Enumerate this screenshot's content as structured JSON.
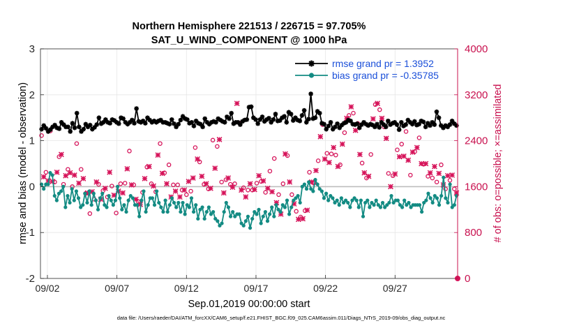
{
  "chart_data": {
    "type": "line",
    "title": "Northern Hemisphere 221513 / 226715 = 97.705%",
    "subtitle": "SAT_U_WIND_COMPONENT @ 1000 hPa",
    "xlabel": "Sep.01,2019 00:00:00 start",
    "ylabel_left": "rmse and bias (model - observation)",
    "ylabel_right": "# of obs: o=possible; ×=assimilated",
    "footnote": "data file: /Users/raeder/DAI/ATM_forcXX/CAM6_setup/f.e21.FHIST_BGC.f09_025.CAM6assim.011/Diags_NTrS_2019-09/obs_diag_output.nc",
    "xlim_days": [
      0.5,
      30.5
    ],
    "ylim_left": [
      -2,
      3
    ],
    "ylim_right": [
      0,
      4000
    ],
    "grid": true,
    "x_ticks": [
      {
        "day": 1.0,
        "label": "09/02"
      },
      {
        "day": 6.0,
        "label": "09/07"
      },
      {
        "day": 11.0,
        "label": "09/12"
      },
      {
        "day": 16.0,
        "label": "09/17"
      },
      {
        "day": 21.0,
        "label": "09/22"
      },
      {
        "day": 26.0,
        "label": "09/27"
      }
    ],
    "y_ticks_left": [
      -2,
      -1,
      0,
      1,
      2,
      3
    ],
    "y_ticks_right": [
      0,
      800,
      1600,
      2400,
      3200,
      4000
    ],
    "zero_line": 0,
    "series": [
      {
        "name": "rmse",
        "legend": "rmse grand pr = 1.3952",
        "color": "#000000",
        "marker": "star",
        "values": [
          1.25,
          1.33,
          1.27,
          1.2,
          1.24,
          1.3,
          1.34,
          1.28,
          1.26,
          1.4,
          1.35,
          1.3,
          1.3,
          1.2,
          1.38,
          1.28,
          1.6,
          1.3,
          1.2,
          1.25,
          1.36,
          1.3,
          1.34,
          1.25,
          1.29,
          1.35,
          1.5,
          1.37,
          1.4,
          1.46,
          1.4,
          1.38,
          1.46,
          1.44,
          1.4,
          1.37,
          1.5,
          1.48,
          1.4,
          1.36,
          1.4,
          1.45,
          1.38,
          1.7,
          1.42,
          1.4,
          1.43,
          1.38,
          1.5,
          1.45,
          1.4,
          1.43,
          1.4,
          1.43,
          1.45,
          1.4,
          1.4,
          1.38,
          1.36,
          1.46,
          1.37,
          1.3,
          1.36,
          1.45,
          1.53,
          1.48,
          1.46,
          1.38,
          1.4,
          1.32,
          1.43,
          1.38,
          1.36,
          1.3,
          1.48,
          1.4,
          1.36,
          1.4,
          1.42,
          1.4,
          1.48,
          1.45,
          1.42,
          1.4,
          1.52,
          1.48,
          1.6,
          1.37,
          1.4,
          1.4,
          1.35,
          1.42,
          1.45,
          1.46,
          1.73,
          1.74,
          1.5,
          1.46,
          1.37,
          1.46,
          1.52,
          1.42,
          1.46,
          1.49,
          1.4,
          1.46,
          1.58,
          1.43,
          1.44,
          1.5,
          1.53,
          1.4,
          1.62,
          1.58,
          1.44,
          1.5,
          1.45,
          1.43,
          1.55,
          1.66,
          1.4,
          1.47,
          2.02,
          1.48,
          1.5,
          1.64,
          1.6,
          1.38,
          1.36,
          1.25,
          1.32,
          1.4,
          1.25,
          1.3,
          1.37,
          1.28,
          1.34,
          1.38,
          1.4,
          1.45,
          1.43,
          1.36,
          1.35,
          1.37,
          1.28,
          1.35,
          1.4,
          1.36,
          1.33,
          1.36,
          1.34,
          1.3,
          1.36,
          1.29,
          1.4,
          1.35,
          1.3,
          1.43,
          1.35,
          1.38,
          1.4,
          1.35,
          1.24,
          1.4,
          1.32,
          1.35,
          1.45,
          1.4,
          1.36,
          1.42,
          1.34,
          1.36,
          1.43,
          1.41,
          1.3,
          1.38,
          1.33,
          1.4,
          1.35,
          1.63,
          1.5,
          1.33,
          1.28,
          1.33,
          1.3,
          1.35,
          1.43,
          1.37,
          1.33
        ]
      },
      {
        "name": "bias",
        "legend": "bias grand pr = -0.35785",
        "color": "#138b83",
        "marker": "circle",
        "values": [
          0.05,
          -0.05,
          0.05,
          0.05,
          0.3,
          0.25,
          -0.2,
          -0.3,
          -0.15,
          -0.1,
          0.0,
          -0.45,
          -0.2,
          -0.35,
          -0.05,
          -0.3,
          -0.1,
          -0.25,
          -0.45,
          -0.4,
          -0.15,
          -0.35,
          -0.1,
          -0.4,
          -0.15,
          -0.3,
          -0.5,
          -0.25,
          -0.15,
          -0.4,
          -0.45,
          -0.2,
          -0.3,
          -0.4,
          -0.3,
          0.0,
          -0.25,
          -0.5,
          -0.4,
          -0.55,
          -0.3,
          -0.2,
          -0.25,
          -0.4,
          -0.4,
          -0.65,
          -0.3,
          -0.1,
          -0.55,
          -0.4,
          -0.25,
          -0.25,
          -0.4,
          -0.1,
          -0.35,
          -0.45,
          -0.55,
          -0.3,
          -0.55,
          -0.4,
          -0.25,
          -0.35,
          -0.45,
          -0.35,
          -0.55,
          -0.35,
          -0.6,
          -0.4,
          -0.45,
          -0.25,
          -0.55,
          -0.4,
          -0.7,
          -0.5,
          -0.45,
          -0.7,
          -0.55,
          -0.45,
          -0.6,
          -0.55,
          -0.7,
          -0.75,
          -0.85,
          -0.8,
          -0.55,
          -0.35,
          -0.45,
          -0.65,
          -0.55,
          -0.65,
          -0.6,
          -0.6,
          -0.8,
          -0.85,
          -0.75,
          -0.65,
          -0.9,
          -0.7,
          -0.55,
          -0.6,
          -0.5,
          -0.8,
          -0.65,
          -0.55,
          -0.75,
          -0.6,
          -0.45,
          -0.65,
          -0.4,
          -0.5,
          -0.55,
          -0.4,
          -0.45,
          -0.3,
          -0.6,
          -0.45,
          -0.3,
          -0.25,
          -0.2,
          -0.35,
          0.0,
          0.05,
          -0.05,
          0.1,
          -0.05,
          -0.1,
          0.15,
          0.05,
          -0.05,
          -0.1,
          -0.25,
          -0.15,
          -0.3,
          -0.2,
          -0.25,
          -0.35,
          -0.3,
          -0.4,
          -0.25,
          -0.35,
          -0.3,
          -0.35,
          -0.45,
          -0.3,
          -0.25,
          -0.3,
          -0.45,
          -0.3,
          -0.65,
          -0.35,
          -0.3,
          -0.45,
          -0.35,
          -0.4,
          -0.3,
          -0.4,
          -0.45,
          -0.35,
          -0.45,
          -0.4,
          -0.35,
          -0.2,
          -0.35,
          -0.3,
          -0.3,
          -0.4,
          -0.45,
          -0.3,
          -0.4,
          -0.35,
          -0.45,
          -0.4,
          -0.4,
          -0.4,
          -0.4,
          -0.55,
          -0.35,
          -0.3,
          -0.15,
          -0.25,
          -0.35,
          -0.2,
          -0.25,
          -0.4,
          -0.2,
          0.2,
          -0.25,
          -0.35,
          0.05,
          -0.45,
          -0.4,
          -0.2
        ]
      },
      {
        "name": "obs possible",
        "color": "#d6145a",
        "marker": "o",
        "axis": "right",
        "values": [
          2490,
          1900,
          1850,
          1850,
          2570,
          1780,
          1680,
          1960,
          2120,
          2220,
          1640,
          1860,
          1900,
          1950,
          1600,
          1880,
          2350,
          1730,
          1900,
          1820,
          1480,
          1580,
          1130,
          1600,
          1380,
          1780,
          1640,
          1460,
          1530,
          1640,
          1420,
          1920,
          1610,
          1530,
          1140,
          1590,
          1650,
          1570,
          1660,
          1980,
          2220,
          1690,
          1630,
          1440,
          1340,
          1350,
          1500,
          1800,
          1940,
          2020,
          1650,
          1680,
          1510,
          2220,
          2350,
          1890,
          1840,
          1710,
          1980,
          1480,
          1630,
          1580,
          1630,
          1480,
          1540,
          1590,
          1460,
          1740,
          1520,
          1810,
          2280,
          2140,
          2030,
          1830,
          1640,
          1720,
          1560,
          1630,
          2410,
          1980,
          2300,
          2470,
          1680,
          1550,
          1720,
          1810,
          1640,
          1650,
          1650,
          3130,
          2710,
          1600,
          1580,
          1480,
          1540,
          1710,
          1540,
          1610,
          1660,
          1850,
          1690,
          1750,
          1500,
          1640,
          1870,
          1570,
          2090,
          1380,
          1460,
          1190,
          1650,
          2230,
          2140,
          1740,
          1460,
          1360,
          1170,
          1090,
          1070,
          1100,
          1180,
          1250,
          1850,
          1740,
          1660,
          1940,
          2050,
          2530,
          2680,
          2150,
          2180,
          2080,
          2170,
          2350,
          2150,
          2010,
          1980,
          2400,
          2540,
          2850,
          2840,
          3060,
          2880,
          2640,
          2700,
          2220,
          2010,
          1900,
          1750,
          1840,
          2160,
          2840,
          3030,
          3110,
          2940,
          2850,
          2640,
          2500,
          1830,
          1660,
          1790,
          1880,
          2240,
          2180,
          2340,
          2190,
          2560,
          2120,
          1800,
          2260,
          2210,
          2340,
          2450,
          2060,
          1990,
          2060,
          1780,
          1900,
          1750,
          2010,
          1680,
          1890,
          1980,
          1690,
          1560,
          1850,
          1710,
          1860,
          1560,
          1550
        ]
      },
      {
        "name": "obs assimilated",
        "color": "#d6145a",
        "marker": "x",
        "axis": "right",
        "values": [
          2330,
          1770,
          1750,
          1700,
          2440,
          1690,
          1590,
          1850,
          2050,
          2160,
          1560,
          1790,
          1810,
          1840,
          1500,
          1800,
          2250,
          1660,
          1830,
          1740,
          1380,
          1490,
          1040,
          1510,
          1290,
          1680,
          1550,
          1380,
          1450,
          1570,
          1350,
          1850,
          1550,
          1450,
          1060,
          1520,
          1570,
          1490,
          1590,
          1910,
          2150,
          1630,
          1570,
          1380,
          1260,
          1290,
          1440,
          1740,
          1870,
          1950,
          1590,
          1610,
          1440,
          2150,
          2280,
          1830,
          1770,
          1650,
          1920,
          1420,
          1560,
          1520,
          1560,
          1420,
          1480,
          1540,
          1390,
          1690,
          1460,
          1750,
          2220,
          2080,
          1970,
          1780,
          1580,
          1650,
          1480,
          1570,
          2360,
          1920,
          2240,
          2420,
          1620,
          1490,
          1660,
          1750,
          1580,
          1590,
          1590,
          3050,
          2650,
          1540,
          1520,
          1420,
          1480,
          1650,
          1480,
          1550,
          1600,
          1790,
          1630,
          1700,
          1440,
          1570,
          1810,
          1510,
          2030,
          1320,
          1380,
          1120,
          1580,
          2170,
          2080,
          1680,
          1400,
          1300,
          1110,
          1030,
          1010,
          1040,
          1120,
          1190,
          1790,
          1680,
          1600,
          1880,
          1990,
          2470,
          2620,
          2080,
          2120,
          2020,
          2110,
          2280,
          2080,
          1950,
          1920,
          2340,
          2480,
          2790,
          2780,
          2990,
          2820,
          2580,
          2640,
          2160,
          1950,
          1840,
          1690,
          1780,
          2100,
          2780,
          2970,
          3050,
          2880,
          2790,
          2580,
          2440,
          1770,
          1600,
          1730,
          1820,
          2180,
          2120,
          2280,
          2130,
          2500,
          2060,
          1740,
          2200,
          2150,
          2280,
          2390,
          2000,
          1930,
          2000,
          1720,
          1840,
          1690,
          1950,
          1620,
          1830,
          1920,
          1630,
          1500,
          1790,
          1650,
          1800,
          1500,
          1490
        ]
      }
    ],
    "right_axis_extra_point": {
      "day": 30.5,
      "value": 0
    }
  }
}
